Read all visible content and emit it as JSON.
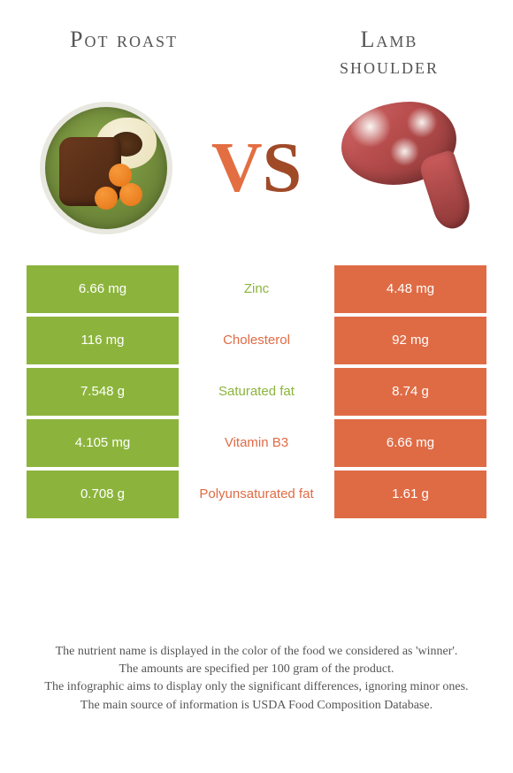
{
  "titles": {
    "left": "Pot roast",
    "right_line1": "Lamb",
    "right_line2": "shoulder"
  },
  "vs": {
    "v": "V",
    "s": "S"
  },
  "colors": {
    "green": "#8cb43c",
    "orange": "#df6b45",
    "label_green": "#8cb43c",
    "label_orange": "#df6b45"
  },
  "rows": [
    {
      "left": "6.66 mg",
      "label": "Zinc",
      "right": "4.48 mg",
      "winner": "left"
    },
    {
      "left": "116 mg",
      "label": "Cholesterol",
      "right": "92 mg",
      "winner": "right"
    },
    {
      "left": "7.548 g",
      "label": "Saturated fat",
      "right": "8.74 g",
      "winner": "left"
    },
    {
      "left": "4.105 mg",
      "label": "Vitamin B3",
      "right": "6.66 mg",
      "winner": "right"
    },
    {
      "left": "0.708 g",
      "label": "Polyunsaturated fat",
      "right": "1.61 g",
      "winner": "right"
    }
  ],
  "footer": [
    "The nutrient name is displayed in the color of the food we considered as 'winner'.",
    "The amounts are specified per 100 gram of the product.",
    "The infographic aims to display only the significant differences, ignoring minor ones.",
    "The main source of information is USDA Food Composition Database."
  ]
}
